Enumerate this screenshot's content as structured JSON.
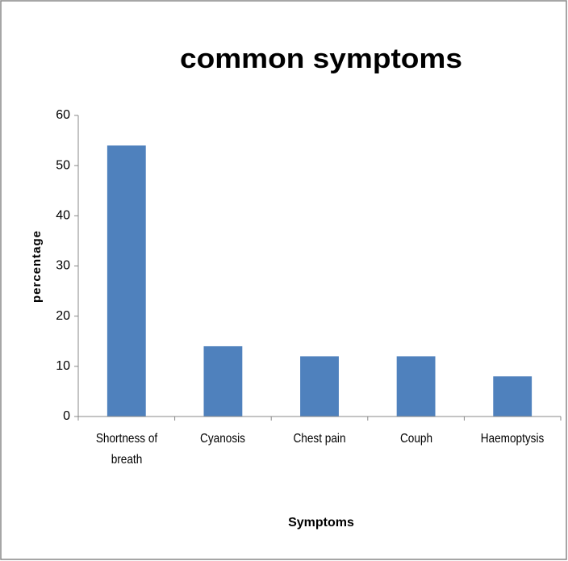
{
  "chart_data": {
    "type": "bar",
    "title": "common symptoms",
    "x_label": "Symptoms",
    "y_label": "percentage",
    "categories": [
      "Shortness of breath",
      "Cyanosis",
      "Chest pain",
      "Couph",
      "Haemoptysis"
    ],
    "values": [
      54,
      14,
      12,
      12,
      8
    ],
    "color": "#4f81bd",
    "ylim": [
      0,
      60
    ],
    "yticks": [
      0,
      10,
      20,
      30,
      40,
      50,
      60
    ],
    "grid": false
  }
}
